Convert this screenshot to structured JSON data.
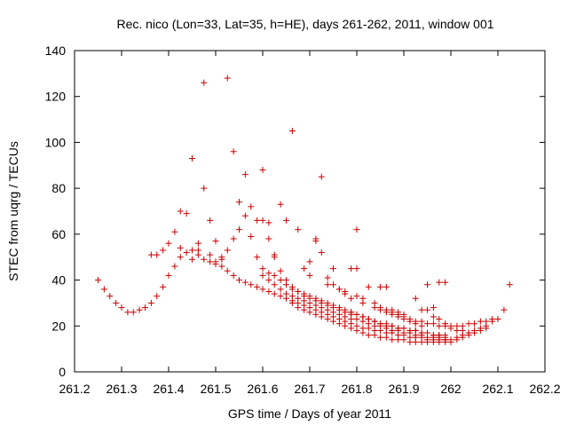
{
  "chart_data": {
    "type": "scatter",
    "title": "Rec. nico (Lon=33, Lat=35, h=HE), days 261-262, 2011, window 001",
    "xlabel": "GPS time / Days of year 2011",
    "ylabel": "STEC from uqrg / TECUs",
    "xlim": [
      261.2,
      262.2
    ],
    "ylim": [
      0,
      140
    ],
    "xticks": [
      261.2,
      261.3,
      261.4,
      261.5,
      261.6,
      261.7,
      261.8,
      261.9,
      262,
      262.1,
      262.2
    ],
    "xtick_labels": [
      "261.2",
      "261.3",
      "261.4",
      "261.5",
      "261.6",
      "261.7",
      "261.8",
      "261.9",
      "262",
      "262.1",
      "262.2"
    ],
    "yticks": [
      0,
      20,
      40,
      60,
      80,
      100,
      120,
      140
    ],
    "ytick_labels": [
      "0",
      "20",
      "40",
      "60",
      "80",
      "100",
      "120",
      "140"
    ],
    "grid": false,
    "marker": "+",
    "color": "#cc0000",
    "series": [
      {
        "x": [
          261.25,
          261.263,
          261.275,
          261.288,
          261.3,
          261.313,
          261.325,
          261.338,
          261.35,
          261.363,
          261.375,
          261.388,
          261.4,
          261.413,
          261.425,
          261.438,
          261.45,
          261.463,
          261.475,
          261.488,
          261.5,
          261.513,
          261.525,
          261.538,
          261.55,
          261.563,
          261.575,
          261.588,
          261.6,
          261.613,
          261.625,
          261.638,
          261.65,
          261.663,
          261.675,
          261.688,
          261.7,
          261.713,
          261.725,
          261.738,
          261.75,
          261.763,
          261.775,
          261.788,
          261.8,
          261.813,
          261.825,
          261.838,
          261.85,
          261.863,
          261.875,
          261.888,
          261.9,
          261.913,
          261.925,
          261.938,
          261.95,
          261.963,
          261.975,
          261.988
        ],
        "y": [
          40,
          36,
          33,
          30,
          28,
          26,
          26,
          27,
          28,
          30,
          33,
          37,
          42,
          46,
          50,
          52,
          53,
          51,
          49,
          48,
          47,
          46,
          44,
          42,
          40,
          39,
          38,
          37,
          36,
          35,
          34,
          33,
          32,
          31,
          30,
          29,
          28,
          27,
          26,
          25,
          24,
          23,
          22,
          21,
          20,
          19,
          19,
          18,
          18,
          17,
          17,
          16,
          16,
          15,
          15,
          15,
          14,
          14,
          14,
          14
        ]
      },
      {
        "x": [
          261.363,
          261.375,
          261.388,
          261.4,
          261.413,
          261.425,
          261.438,
          261.45,
          261.463,
          261.475,
          261.488,
          261.5,
          261.513,
          261.525,
          261.538,
          261.55,
          261.563,
          261.575,
          261.588,
          261.6,
          261.613,
          261.625,
          261.638,
          261.65,
          261.663,
          261.675,
          261.688,
          261.7,
          261.713,
          261.725,
          261.738,
          261.75,
          261.763,
          261.775,
          261.788,
          261.8,
          261.813,
          261.825,
          261.838,
          261.85,
          261.863,
          261.875,
          261.888,
          261.9,
          261.913,
          261.925,
          261.938,
          261.95,
          261.963,
          261.975,
          261.988
        ],
        "y": [
          51,
          51,
          53,
          56,
          61,
          70,
          69,
          93,
          56,
          80,
          66,
          57,
          49,
          53,
          58,
          62,
          68,
          72,
          66,
          66,
          58,
          50,
          44,
          40,
          37,
          35,
          34,
          33,
          32,
          31,
          30,
          29,
          28,
          27,
          26,
          25,
          24,
          23,
          22,
          21,
          21,
          20,
          19,
          19,
          18,
          18,
          17,
          17,
          16,
          16,
          15
        ]
      },
      {
        "x": [
          261.425,
          261.45,
          261.463,
          261.475,
          261.488,
          261.5,
          261.513,
          261.525,
          261.538,
          261.55,
          261.563,
          261.575,
          261.588,
          261.6,
          261.613,
          261.625,
          261.638,
          261.65,
          261.663,
          261.675,
          261.688,
          261.7,
          261.713,
          261.725,
          261.738,
          261.75,
          261.763,
          261.775,
          261.788,
          261.8,
          261.813,
          261.825,
          261.838,
          261.85,
          261.863,
          261.875,
          261.888,
          261.9,
          261.913,
          261.925,
          261.938,
          261.95,
          261.963,
          261.975,
          261.988
        ],
        "y": [
          54,
          49,
          53,
          126,
          51,
          48,
          50,
          128,
          96,
          74,
          86,
          59,
          50,
          88,
          65,
          51,
          73,
          66,
          105,
          62,
          45,
          42,
          58,
          85,
          41,
          38,
          36,
          34,
          32,
          45,
          30,
          37,
          28,
          27,
          26,
          25,
          24,
          23,
          22,
          21,
          20,
          27,
          24,
          23,
          21
        ]
      },
      {
        "x": [
          261.6,
          261.613,
          261.625,
          261.638,
          261.65,
          261.663,
          261.675,
          261.688,
          261.7,
          261.713,
          261.725,
          261.738,
          261.75,
          261.763,
          261.775,
          261.788,
          261.8,
          261.813,
          261.825,
          261.838,
          261.85,
          261.863,
          261.875,
          261.888,
          261.9,
          261.913,
          261.925,
          261.938,
          261.95,
          261.963,
          261.975,
          261.988
        ],
        "y": [
          45,
          43,
          42,
          40,
          38,
          36,
          35,
          33,
          32,
          31,
          30,
          29,
          28,
          27,
          26,
          25,
          62,
          24,
          23,
          22,
          21,
          20,
          20,
          19,
          19,
          18,
          18,
          17,
          17,
          16,
          16,
          16
        ]
      },
      {
        "x": [
          261.6,
          261.613,
          261.625,
          261.638,
          261.65,
          261.663,
          261.675,
          261.688,
          261.7,
          261.713,
          261.725,
          261.738,
          261.75,
          261.763,
          261.775,
          261.788,
          261.8,
          261.813,
          261.825,
          261.838,
          261.85,
          261.863,
          261.875,
          261.888,
          261.9,
          261.913,
          261.925,
          261.938,
          261.95,
          261.963,
          261.975,
          261.988,
          262.0,
          262.013,
          262.025,
          262.038,
          262.05,
          262.063,
          262.075,
          262.088,
          262.1,
          262.113,
          262.125
        ],
        "y": [
          42,
          40,
          38,
          36,
          34,
          33,
          32,
          31,
          30,
          29,
          28,
          27,
          26,
          25,
          24,
          23,
          23,
          22,
          21,
          20,
          20,
          19,
          18,
          18,
          17,
          17,
          16,
          16,
          15,
          15,
          15,
          14,
          14,
          15,
          16,
          17,
          18,
          19,
          20,
          22,
          23,
          27,
          38
        ]
      },
      {
        "x": [
          261.663,
          261.675,
          261.688,
          261.7,
          261.713,
          261.725,
          261.738,
          261.75,
          261.763,
          261.775,
          261.788,
          261.8,
          261.813,
          261.825,
          261.838,
          261.85,
          261.863,
          261.875,
          261.888,
          261.9,
          261.913,
          261.925,
          261.938,
          261.95,
          261.963,
          261.975,
          261.988,
          262.0,
          262.013,
          262.025,
          262.038,
          262.05,
          262.063,
          262.075
        ],
        "y": [
          30,
          28,
          27,
          26,
          25,
          24,
          23,
          22,
          21,
          20,
          19,
          18,
          17,
          16,
          16,
          15,
          15,
          14,
          14,
          14,
          13,
          13,
          13,
          13,
          13,
          13,
          13,
          13,
          14,
          15,
          16,
          17,
          18,
          19
        ]
      },
      {
        "x": [
          261.838,
          261.85,
          261.863,
          261.875,
          261.888,
          261.9,
          261.913,
          261.925,
          261.938,
          261.95,
          261.963,
          261.975,
          261.988,
          262.0,
          262.013,
          262.025,
          262.038,
          262.05,
          262.063,
          262.075,
          262.088
        ],
        "y": [
          30,
          28,
          27,
          26,
          25,
          24,
          23,
          22,
          22,
          21,
          21,
          20,
          20,
          20,
          20,
          20,
          21,
          21,
          22,
          22,
          23
        ]
      },
      {
        "x": [
          261.7,
          261.713,
          261.725,
          261.738,
          261.75,
          261.763,
          261.775,
          261.788,
          261.8,
          261.813,
          261.925,
          261.938,
          261.95,
          261.963,
          261.975,
          261.988
        ],
        "y": [
          48,
          57,
          52,
          38,
          45,
          36,
          35,
          45,
          33,
          32,
          32,
          27,
          38,
          28,
          39,
          39
        ]
      },
      {
        "x": [
          261.788,
          261.8,
          261.813,
          261.825,
          261.838,
          261.85,
          261.863,
          261.875,
          261.888,
          261.9,
          262.0,
          262.013,
          262.025,
          262.038,
          262.05
        ],
        "y": [
          26,
          25,
          24,
          23,
          22,
          37,
          37,
          27,
          26,
          25,
          19,
          18,
          18,
          17,
          17
        ]
      }
    ]
  }
}
